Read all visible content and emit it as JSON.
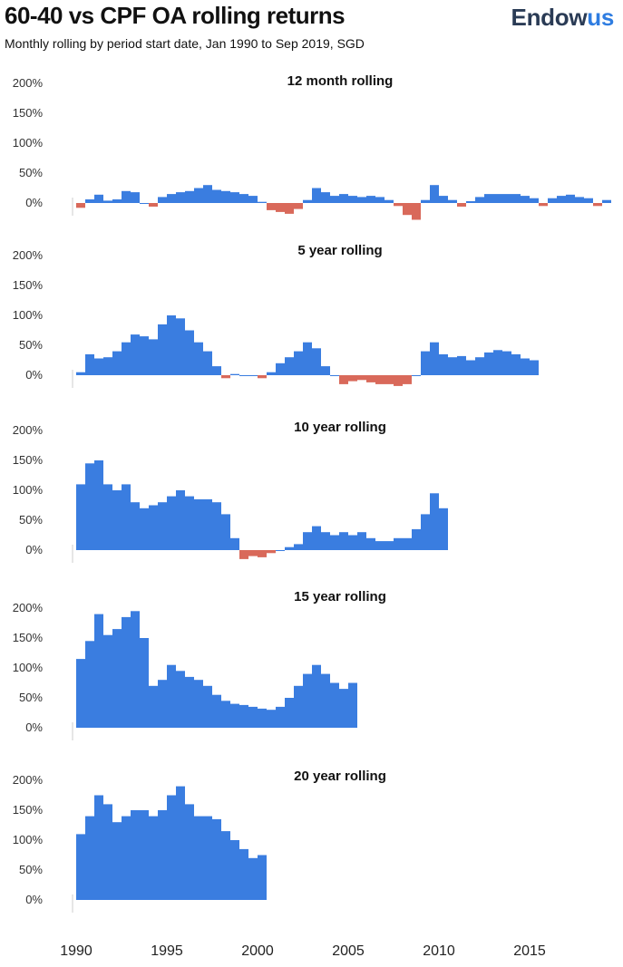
{
  "header": {
    "title": "60-40 vs CPF OA rolling returns",
    "subtitle": "Monthly rolling by period start date, Jan 1990 to Sep 2019, SGD",
    "brand_main": "Endow",
    "brand_accent": "us"
  },
  "colors": {
    "positive": "#3a7de0",
    "negative": "#d9695a",
    "axis": "#cccccc"
  },
  "chart_data": [
    {
      "type": "bar",
      "title": "12 month rolling",
      "ylim": [
        -20,
        200
      ],
      "yticks": [
        "200%",
        "150%",
        "100%",
        "50%",
        "0%"
      ],
      "x": [
        1990.0,
        1990.5,
        1991.0,
        1991.5,
        1992.0,
        1992.5,
        1993.0,
        1993.5,
        1994.0,
        1994.5,
        1995.0,
        1995.5,
        1996.0,
        1996.5,
        1997.0,
        1997.5,
        1998.0,
        1998.5,
        1999.0,
        1999.5,
        2000.0,
        2000.5,
        2001.0,
        2001.5,
        2002.0,
        2002.5,
        2003.0,
        2003.5,
        2004.0,
        2004.5,
        2005.0,
        2005.5,
        2006.0,
        2006.5,
        2007.0,
        2007.5,
        2008.0,
        2008.5,
        2009.0,
        2009.5,
        2010.0,
        2010.5,
        2011.0,
        2011.5,
        2012.0,
        2012.5,
        2013.0,
        2013.5,
        2014.0,
        2014.5,
        2015.0,
        2015.5,
        2016.0,
        2016.5,
        2017.0,
        2017.5,
        2018.0,
        2018.5,
        2019.0
      ],
      "values": [
        -8,
        6,
        14,
        4,
        6,
        20,
        18,
        0,
        -6,
        10,
        15,
        18,
        20,
        25,
        30,
        22,
        20,
        18,
        15,
        12,
        2,
        -12,
        -15,
        -18,
        -10,
        5,
        25,
        18,
        12,
        15,
        12,
        10,
        12,
        10,
        5,
        -5,
        -20,
        -28,
        5,
        30,
        12,
        5,
        -6,
        3,
        10,
        15,
        15,
        15,
        15,
        12,
        8,
        -5,
        8,
        12,
        14,
        10,
        8,
        -5,
        5
      ]
    },
    {
      "type": "bar",
      "title": "5 year rolling",
      "ylim": [
        -20,
        200
      ],
      "yticks": [
        "200%",
        "150%",
        "100%",
        "50%",
        "0%"
      ],
      "x": [
        1990.0,
        1990.5,
        1991.0,
        1991.5,
        1992.0,
        1992.5,
        1993.0,
        1993.5,
        1994.0,
        1994.5,
        1995.0,
        1995.5,
        1996.0,
        1996.5,
        1997.0,
        1997.5,
        1998.0,
        1998.5,
        1999.0,
        1999.5,
        2000.0,
        2000.5,
        2001.0,
        2001.5,
        2002.0,
        2002.5,
        2003.0,
        2003.5,
        2004.0,
        2004.5,
        2005.0,
        2005.5,
        2006.0,
        2006.5,
        2007.0,
        2007.5,
        2008.0,
        2008.5,
        2009.0,
        2009.5,
        2010.0,
        2010.5,
        2011.0,
        2011.5,
        2012.0,
        2012.5,
        2013.0,
        2013.5,
        2014.0,
        2014.5,
        2015.0
      ],
      "values": [
        5,
        35,
        28,
        30,
        40,
        55,
        68,
        65,
        60,
        85,
        100,
        95,
        75,
        55,
        40,
        15,
        -5,
        2,
        0,
        0,
        -5,
        5,
        20,
        30,
        40,
        55,
        45,
        15,
        0,
        -15,
        -10,
        -8,
        -12,
        -15,
        -15,
        -18,
        -15,
        0,
        40,
        55,
        35,
        30,
        32,
        25,
        30,
        38,
        42,
        40,
        35,
        28,
        25
      ]
    },
    {
      "type": "bar",
      "title": "10 year rolling",
      "ylim": [
        -20,
        200
      ],
      "yticks": [
        "200%",
        "150%",
        "100%",
        "50%",
        "0%"
      ],
      "x": [
        1990.0,
        1990.5,
        1991.0,
        1991.5,
        1992.0,
        1992.5,
        1993.0,
        1993.5,
        1994.0,
        1994.5,
        1995.0,
        1995.5,
        1996.0,
        1996.5,
        1997.0,
        1997.5,
        1998.0,
        1998.5,
        1999.0,
        1999.5,
        2000.0,
        2000.5,
        2001.0,
        2001.5,
        2002.0,
        2002.5,
        2003.0,
        2003.5,
        2004.0,
        2004.5,
        2005.0,
        2005.5,
        2006.0,
        2006.5,
        2007.0,
        2007.5,
        2008.0,
        2008.5,
        2009.0,
        2009.5,
        2010.0
      ],
      "values": [
        110,
        145,
        150,
        110,
        100,
        110,
        80,
        70,
        75,
        80,
        90,
        100,
        90,
        85,
        85,
        80,
        60,
        20,
        -15,
        -10,
        -12,
        -5,
        0,
        5,
        10,
        30,
        40,
        30,
        25,
        30,
        25,
        30,
        20,
        15,
        15,
        20,
        20,
        35,
        60,
        95,
        70
      ]
    },
    {
      "type": "bar",
      "title": "15 year rolling",
      "ylim": [
        -20,
        200
      ],
      "yticks": [
        "200%",
        "150%",
        "100%",
        "50%",
        "0%"
      ],
      "x": [
        1990.0,
        1990.5,
        1991.0,
        1991.5,
        1992.0,
        1992.5,
        1993.0,
        1993.5,
        1994.0,
        1994.5,
        1995.0,
        1995.5,
        1996.0,
        1996.5,
        1997.0,
        1997.5,
        1998.0,
        1998.5,
        1999.0,
        1999.5,
        2000.0,
        2000.5,
        2001.0,
        2001.5,
        2002.0,
        2002.5,
        2003.0,
        2003.5,
        2004.0,
        2004.5,
        2005.0
      ],
      "values": [
        115,
        145,
        190,
        155,
        165,
        185,
        195,
        150,
        70,
        80,
        105,
        95,
        85,
        80,
        70,
        55,
        45,
        40,
        38,
        35,
        32,
        30,
        35,
        50,
        70,
        90,
        105,
        90,
        75,
        65,
        75
      ]
    },
    {
      "type": "bar",
      "title": "20 year rolling",
      "ylim": [
        -20,
        200
      ],
      "yticks": [
        "200%",
        "150%",
        "100%",
        "50%",
        "0%"
      ],
      "x": [
        1990.0,
        1990.5,
        1991.0,
        1991.5,
        1992.0,
        1992.5,
        1993.0,
        1993.5,
        1994.0,
        1994.5,
        1995.0,
        1995.5,
        1996.0,
        1996.5,
        1997.0,
        1997.5,
        1998.0,
        1998.5,
        1999.0,
        1999.5,
        2000.0
      ],
      "values": [
        110,
        140,
        175,
        160,
        130,
        140,
        150,
        150,
        140,
        150,
        175,
        190,
        160,
        140,
        140,
        135,
        115,
        100,
        85,
        70,
        75
      ]
    }
  ],
  "xaxis": {
    "range": [
      1989.8,
      2019.4
    ],
    "ticks": [
      "1990",
      "1995",
      "2000",
      "2005",
      "2010",
      "2015"
    ],
    "tick_values": [
      1990,
      1995,
      2000,
      2005,
      2010,
      2015
    ]
  }
}
